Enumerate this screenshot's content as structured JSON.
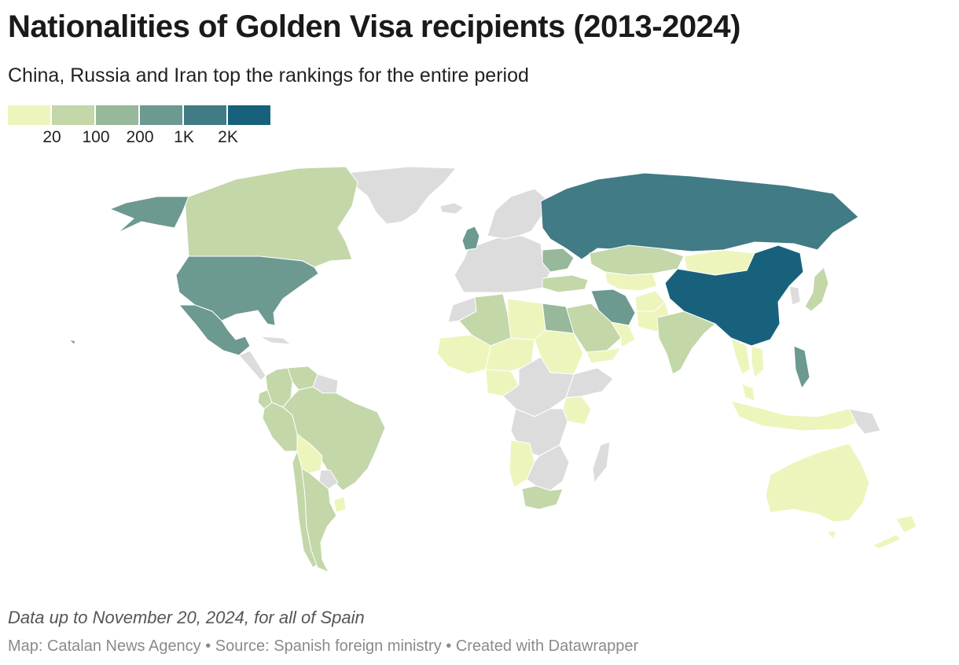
{
  "title": "Nationalities of Golden Visa recipients (2013-2024)",
  "subtitle": "China, Russia and Iran top the rankings for the entire period",
  "legend": {
    "colors": [
      "#edf5bc",
      "#c3d7a9",
      "#97b89a",
      "#6c9990",
      "#417b85",
      "#18617c"
    ],
    "labels": [
      "20",
      "100",
      "200",
      "1K",
      "2K"
    ]
  },
  "no_data_color": "#dcdcdc",
  "countries": [
    {
      "name": "China",
      "bin": 5
    },
    {
      "name": "Russia",
      "bin": 4
    },
    {
      "name": "Iran",
      "bin": 3
    },
    {
      "name": "United States",
      "bin": 3
    },
    {
      "name": "Alaska (United States)",
      "bin": 3
    },
    {
      "name": "Mexico",
      "bin": 3
    },
    {
      "name": "United Kingdom",
      "bin": 3
    },
    {
      "name": "Philippines",
      "bin": 3
    },
    {
      "name": "Ukraine",
      "bin": 2
    },
    {
      "name": "Egypt",
      "bin": 2
    },
    {
      "name": "Canada",
      "bin": 1
    },
    {
      "name": "Brazil",
      "bin": 1
    },
    {
      "name": "Colombia",
      "bin": 1
    },
    {
      "name": "Peru",
      "bin": 1
    },
    {
      "name": "Venezuela",
      "bin": 1
    },
    {
      "name": "Argentina",
      "bin": 1
    },
    {
      "name": "Chile",
      "bin": 1
    },
    {
      "name": "Ecuador",
      "bin": 1
    },
    {
      "name": "Kazakhstan",
      "bin": 1
    },
    {
      "name": "India",
      "bin": 1
    },
    {
      "name": "Saudi Arabia",
      "bin": 1
    },
    {
      "name": "Turkey",
      "bin": 1
    },
    {
      "name": "Algeria",
      "bin": 1
    },
    {
      "name": "South Africa",
      "bin": 1
    },
    {
      "name": "Japan",
      "bin": 1
    },
    {
      "name": "Mongolia",
      "bin": 0
    },
    {
      "name": "Australia",
      "bin": 0
    },
    {
      "name": "New Zealand",
      "bin": 0
    },
    {
      "name": "Bolivia",
      "bin": 0
    },
    {
      "name": "Uruguay",
      "bin": 0
    },
    {
      "name": "Libya",
      "bin": 0
    },
    {
      "name": "Mali",
      "bin": 0
    },
    {
      "name": "Niger",
      "bin": 0
    },
    {
      "name": "Sudan",
      "bin": 0
    },
    {
      "name": "Nigeria",
      "bin": 0
    },
    {
      "name": "Kenya",
      "bin": 0
    },
    {
      "name": "Angola",
      "bin": 0
    },
    {
      "name": "Indonesia",
      "bin": 0
    },
    {
      "name": "Thailand",
      "bin": 0
    },
    {
      "name": "Pakistan",
      "bin": 0
    },
    {
      "name": "Afghanistan",
      "bin": 0
    },
    {
      "name": "Uzbekistan",
      "bin": 0
    },
    {
      "name": "Oman",
      "bin": 0
    },
    {
      "name": "Yemen",
      "bin": 0
    },
    {
      "name": "Malaysia",
      "bin": 0
    },
    {
      "name": "Vietnam",
      "bin": 0
    }
  ],
  "note": "Data up to November 20, 2024, for all of Spain",
  "footer": "Map: Catalan News Agency • Source: Spanish foreign ministry • Created with Datawrapper"
}
